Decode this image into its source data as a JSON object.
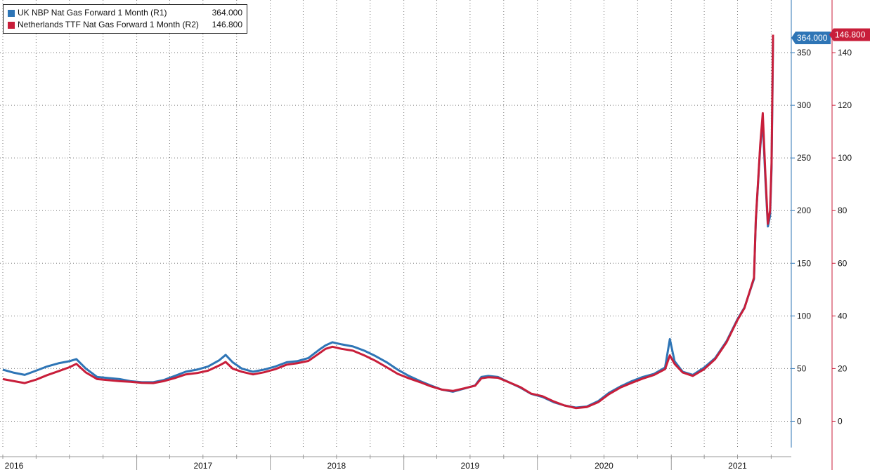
{
  "chart_data": {
    "type": "line",
    "legend_position": "top-left",
    "grid": true,
    "x_axis": {
      "range": [
        "2016-01-01",
        "2021-10-06"
      ],
      "tick_labels": [
        "2016",
        "2017",
        "2018",
        "2019",
        "2020",
        "2021"
      ]
    },
    "y_axis_right1": {
      "range": [
        -25,
        400
      ],
      "ticks": [
        0,
        50,
        100,
        150,
        200,
        250,
        300,
        350
      ],
      "tick_labels": [
        "0",
        "50",
        "100",
        "150",
        "200",
        "250",
        "300",
        "350"
      ]
    },
    "y_axis_right2": {
      "range": [
        -10,
        160
      ],
      "ticks": [
        0,
        20,
        40,
        60,
        80,
        100,
        120,
        140
      ],
      "tick_labels": [
        "0",
        "20",
        "40",
        "60",
        "80",
        "100",
        "120",
        "140"
      ]
    },
    "series": [
      {
        "name": "UK NBP Nat Gas Forward 1 Month (R1)",
        "last_value_label": "364.000",
        "color": "#2e75b6",
        "axis": "R1",
        "points": [
          [
            "2016-01-01",
            49
          ],
          [
            "2016-02-01",
            46
          ],
          [
            "2016-03-01",
            44
          ],
          [
            "2016-04-01",
            48
          ],
          [
            "2016-05-01",
            52
          ],
          [
            "2016-06-01",
            55
          ],
          [
            "2016-07-01",
            57
          ],
          [
            "2016-07-20",
            59
          ],
          [
            "2016-08-15",
            50
          ],
          [
            "2016-09-15",
            42
          ],
          [
            "2016-10-15",
            41
          ],
          [
            "2016-11-15",
            40
          ],
          [
            "2016-12-15",
            38
          ],
          [
            "2017-01-15",
            37
          ],
          [
            "2017-02-15",
            37
          ],
          [
            "2017-03-15",
            39
          ],
          [
            "2017-04-15",
            43
          ],
          [
            "2017-05-15",
            47
          ],
          [
            "2017-06-15",
            49
          ],
          [
            "2017-07-15",
            52
          ],
          [
            "2017-08-15",
            58
          ],
          [
            "2017-09-01",
            63
          ],
          [
            "2017-09-20",
            56
          ],
          [
            "2017-10-15",
            50
          ],
          [
            "2017-11-15",
            47
          ],
          [
            "2017-12-15",
            49
          ],
          [
            "2018-01-15",
            52
          ],
          [
            "2018-02-15",
            56
          ],
          [
            "2018-03-15",
            57
          ],
          [
            "2018-04-15",
            60
          ],
          [
            "2018-05-15",
            68
          ],
          [
            "2018-06-01",
            72
          ],
          [
            "2018-06-20",
            75
          ],
          [
            "2018-07-15",
            73
          ],
          [
            "2018-08-15",
            71
          ],
          [
            "2018-09-15",
            67
          ],
          [
            "2018-10-15",
            62
          ],
          [
            "2018-11-15",
            56
          ],
          [
            "2018-12-15",
            49
          ],
          [
            "2019-01-15",
            43
          ],
          [
            "2019-02-15",
            38
          ],
          [
            "2019-03-15",
            34
          ],
          [
            "2019-04-15",
            30
          ],
          [
            "2019-05-15",
            28
          ],
          [
            "2019-06-15",
            31
          ],
          [
            "2019-07-15",
            34
          ],
          [
            "2019-08-01",
            42
          ],
          [
            "2019-08-20",
            43
          ],
          [
            "2019-09-15",
            42
          ],
          [
            "2019-10-15",
            37
          ],
          [
            "2019-11-15",
            32
          ],
          [
            "2019-12-15",
            26
          ],
          [
            "2020-01-15",
            23
          ],
          [
            "2020-02-15",
            18
          ],
          [
            "2020-03-15",
            15
          ],
          [
            "2020-04-15",
            13
          ],
          [
            "2020-05-15",
            14
          ],
          [
            "2020-06-15",
            19
          ],
          [
            "2020-07-15",
            27
          ],
          [
            "2020-08-15",
            33
          ],
          [
            "2020-09-15",
            38
          ],
          [
            "2020-10-15",
            42
          ],
          [
            "2020-11-15",
            45
          ],
          [
            "2020-12-15",
            51
          ],
          [
            "2020-12-28",
            78
          ],
          [
            "2021-01-10",
            57
          ],
          [
            "2021-02-01",
            47
          ],
          [
            "2021-03-01",
            44
          ],
          [
            "2021-04-01",
            51
          ],
          [
            "2021-05-01",
            60
          ],
          [
            "2021-06-01",
            76
          ],
          [
            "2021-07-01",
            97
          ],
          [
            "2021-07-20",
            108
          ],
          [
            "2021-08-15",
            135
          ],
          [
            "2021-08-20",
            190
          ],
          [
            "2021-09-01",
            260
          ],
          [
            "2021-09-08",
            285
          ],
          [
            "2021-09-15",
            230
          ],
          [
            "2021-09-22",
            185
          ],
          [
            "2021-09-28",
            195
          ],
          [
            "2021-10-02",
            240
          ],
          [
            "2021-10-05",
            330
          ],
          [
            "2021-10-06",
            364
          ]
        ]
      },
      {
        "name": "Netherlands TTF Nat Gas Forward 1 Month (R2)",
        "last_value_label": "146.800",
        "color": "#c81e3a",
        "axis": "R2",
        "points": [
          [
            "2016-01-01",
            16
          ],
          [
            "2016-02-01",
            15.2
          ],
          [
            "2016-03-01",
            14.5
          ],
          [
            "2016-04-01",
            15.8
          ],
          [
            "2016-05-01",
            17.5
          ],
          [
            "2016-06-01",
            19
          ],
          [
            "2016-07-01",
            20.5
          ],
          [
            "2016-07-20",
            21.8
          ],
          [
            "2016-08-15",
            18.5
          ],
          [
            "2016-09-15",
            16
          ],
          [
            "2016-10-15",
            15.6
          ],
          [
            "2016-11-15",
            15.2
          ],
          [
            "2016-12-15",
            15
          ],
          [
            "2017-01-15",
            14.6
          ],
          [
            "2017-02-15",
            14.5
          ],
          [
            "2017-03-15",
            15.2
          ],
          [
            "2017-04-15",
            16.4
          ],
          [
            "2017-05-15",
            17.8
          ],
          [
            "2017-06-15",
            18.3
          ],
          [
            "2017-07-15",
            19.2
          ],
          [
            "2017-08-15",
            21.2
          ],
          [
            "2017-09-01",
            22.5
          ],
          [
            "2017-09-20",
            20
          ],
          [
            "2017-10-15",
            18.8
          ],
          [
            "2017-11-15",
            17.8
          ],
          [
            "2017-12-15",
            18.6
          ],
          [
            "2018-01-15",
            19.8
          ],
          [
            "2018-02-15",
            21.5
          ],
          [
            "2018-03-15",
            22
          ],
          [
            "2018-04-15",
            22.9
          ],
          [
            "2018-05-15",
            25.8
          ],
          [
            "2018-06-01",
            27.5
          ],
          [
            "2018-06-20",
            28.3
          ],
          [
            "2018-07-15",
            27.5
          ],
          [
            "2018-08-15",
            26.8
          ],
          [
            "2018-09-15",
            25
          ],
          [
            "2018-10-15",
            23
          ],
          [
            "2018-11-15",
            20.5
          ],
          [
            "2018-12-15",
            18
          ],
          [
            "2019-01-15",
            16.3
          ],
          [
            "2019-02-15",
            14.8
          ],
          [
            "2019-03-15",
            13.3
          ],
          [
            "2019-04-15",
            12
          ],
          [
            "2019-05-15",
            11.5
          ],
          [
            "2019-06-15",
            12.5
          ],
          [
            "2019-07-15",
            13.5
          ],
          [
            "2019-08-01",
            16.3
          ],
          [
            "2019-08-20",
            16.7
          ],
          [
            "2019-09-15",
            16.5
          ],
          [
            "2019-10-15",
            14.8
          ],
          [
            "2019-11-15",
            13
          ],
          [
            "2019-12-15",
            10.5
          ],
          [
            "2020-01-15",
            9.5
          ],
          [
            "2020-02-15",
            7.5
          ],
          [
            "2020-03-15",
            6
          ],
          [
            "2020-04-15",
            5
          ],
          [
            "2020-05-15",
            5.4
          ],
          [
            "2020-06-15",
            7.2
          ],
          [
            "2020-07-15",
            10.3
          ],
          [
            "2020-08-15",
            12.8
          ],
          [
            "2020-09-15",
            14.6
          ],
          [
            "2020-10-15",
            16.2
          ],
          [
            "2020-11-15",
            17.6
          ],
          [
            "2020-12-15",
            19.8
          ],
          [
            "2020-12-28",
            25
          ],
          [
            "2021-01-10",
            21.8
          ],
          [
            "2021-02-01",
            18.5
          ],
          [
            "2021-03-01",
            17.2
          ],
          [
            "2021-04-01",
            19.8
          ],
          [
            "2021-05-01",
            23.6
          ],
          [
            "2021-06-01",
            30
          ],
          [
            "2021-07-01",
            38.5
          ],
          [
            "2021-07-20",
            43
          ],
          [
            "2021-08-15",
            54.5
          ],
          [
            "2021-08-20",
            76.5
          ],
          [
            "2021-09-01",
            105
          ],
          [
            "2021-09-08",
            117
          ],
          [
            "2021-09-15",
            94
          ],
          [
            "2021-09-22",
            75
          ],
          [
            "2021-09-28",
            80
          ],
          [
            "2021-10-02",
            98
          ],
          [
            "2021-10-05",
            135
          ],
          [
            "2021-10-06",
            146.8
          ]
        ]
      }
    ]
  }
}
